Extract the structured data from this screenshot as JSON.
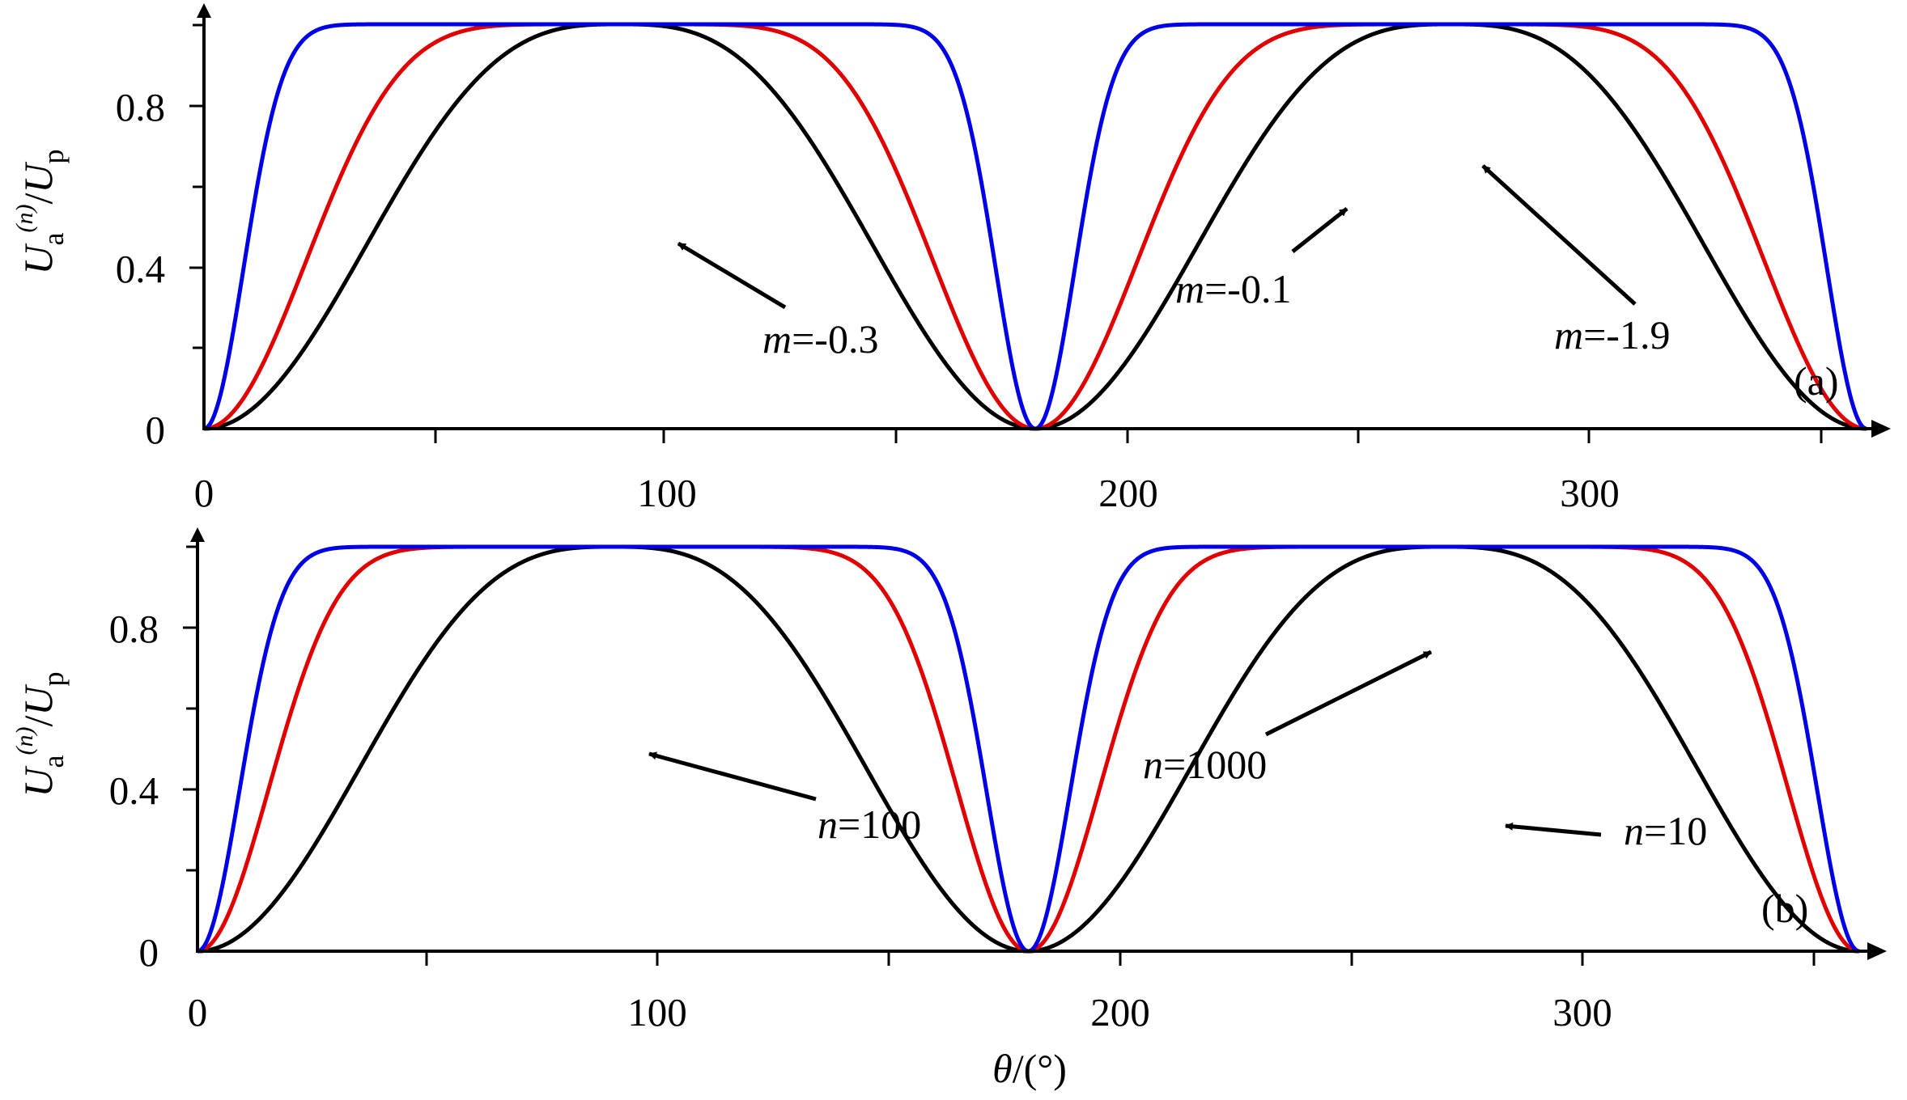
{
  "chart_data": [
    {
      "type": "line",
      "panel_label": "(a)",
      "xlim": [
        0,
        360
      ],
      "ylim": [
        0,
        1
      ],
      "x_ticks": [
        0,
        100,
        200,
        300
      ],
      "y_ticks": [
        0,
        0.4,
        0.8
      ],
      "y_tick_labels": [
        "0",
        "0.4",
        "0.8"
      ],
      "ylabel": {
        "U": "U",
        "sub_a": "a",
        "sup_n": "(n)",
        "slash": "/",
        "U2": "U",
        "sub_p": "p"
      },
      "xlabel": "",
      "grid": false,
      "series": [
        {
          "color": "#000000",
          "notch_centers": [
            90,
            270
          ],
          "notch_shape_exponent": 3.0
        },
        {
          "color": "#e00000",
          "notch_centers": [
            90,
            270
          ],
          "notch_shape_exponent": 7.0
        },
        {
          "color": "#0000e6",
          "notch_centers": [
            90,
            270
          ],
          "notch_shape_exponent": 45.0
        }
      ],
      "annotations": [
        {
          "var": "m",
          "text": "=-0.3",
          "arrow_target": [
            104,
            0.46
          ]
        },
        {
          "var": "m",
          "text": "=-0.1",
          "arrow_target": [
            249,
            0.54
          ]
        },
        {
          "var": "m",
          "text": "=-1.9",
          "arrow_target": [
            278,
            0.65
          ]
        }
      ]
    },
    {
      "type": "line",
      "panel_label": "(b)",
      "xlim": [
        0,
        360
      ],
      "ylim": [
        0,
        1
      ],
      "x_ticks": [
        0,
        100,
        200,
        300
      ],
      "y_ticks": [
        0,
        0.4,
        0.8
      ],
      "y_tick_labels": [
        "0",
        "0.4",
        "0.8"
      ],
      "ylabel": {
        "U": "U",
        "sub_a": "a",
        "sup_n": "(n)",
        "slash": "/",
        "U2": "U",
        "sub_p": "p"
      },
      "xlabel": {
        "theta": "θ",
        "rest": "/(°)"
      },
      "grid": false,
      "series": [
        {
          "color": "#000000",
          "notch_centers": [
            90,
            270
          ],
          "notch_shape_exponent": 3.0
        },
        {
          "color": "#e00000",
          "notch_centers": [
            90,
            270
          ],
          "notch_shape_exponent": 14.0
        },
        {
          "color": "#0000e6",
          "notch_centers": [
            90,
            270
          ],
          "notch_shape_exponent": 40.0
        }
      ],
      "annotations": [
        {
          "var": "n",
          "text": "=100",
          "arrow_target": [
            96,
            0.49
          ]
        },
        {
          "var": "n",
          "text": "=1000",
          "arrow_target": [
            268,
            0.74
          ]
        },
        {
          "var": "n",
          "text": "=10",
          "arrow_target": [
            283,
            0.31
          ]
        }
      ]
    }
  ]
}
